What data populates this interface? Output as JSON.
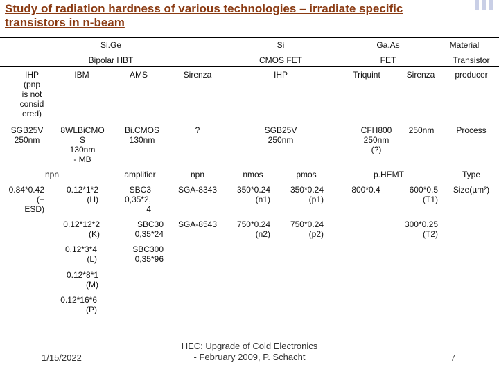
{
  "slide": {
    "title": "Study of radiation hardness of various technologies – irradiate specific transistors in n-beam",
    "footer": {
      "date": "1/15/2022",
      "center": "HEC: Upgrade of Cold Electronics\n- February 2009, P. Schacht",
      "page": "7"
    }
  },
  "table": {
    "material": {
      "sige": "Si.Ge",
      "si": "Si",
      "gaas": "Ga.As",
      "label": "Material"
    },
    "transistor": {
      "bipolar": "Bipolar HBT",
      "cmos": "CMOS FET",
      "fet": "FET",
      "label": "Transistor"
    },
    "producer": {
      "ihp": "IHP\n(pnp\nis not\nconsid\nered)",
      "ibm": "IBM",
      "ams": "AMS",
      "sirenza1": "Sirenza",
      "ihp2": "IHP",
      "triquint": "Triquint",
      "sirenza2": "Sirenza",
      "label": "producer"
    },
    "process": {
      "sgb25v": "SGB25V\n250nm",
      "bicmos8": "8WLBiCMO\nS\n130nm\n- MB",
      "bicmos": "Bi.CMOS\n130nm",
      "unknown": "?",
      "sgb25v2": "SGB25V\n250nm",
      "cfh800": "CFH800\n250nm\n(?)",
      "nm250": "250nm",
      "label": "Process"
    },
    "type": {
      "npn1": "npn",
      "amplifier": "amplifier",
      "npn2": "npn",
      "nmos": "nmos",
      "pmos": "pmos",
      "phemt": "p.HEMT",
      "label": "Type"
    },
    "size": {
      "r1": {
        "ihp": "0.84*0.42\n(+\nESD)",
        "ibm": "0.12*1*2\n(H)",
        "sbc": "SBC3\n0,35*2,\n4",
        "sga": "SGA-8343",
        "nmos": "350*0.24\n(n1)",
        "pmos": "350*0.24\n(p1)",
        "triquint": "800*0.4",
        "sirenza": "600*0.5\n(T1)",
        "label": "Size(µm²)"
      },
      "r2": {
        "ibm": "0.12*12*2\n(K)",
        "sbc": "SBC30\n0,35*24",
        "sga": "SGA-8543",
        "nmos": "750*0.24\n(n2)",
        "pmos": "750*0.24\n(p2)",
        "sirenza": "300*0.25\n(T2)"
      },
      "r3": {
        "ibm": "0.12*3*4\n(L)",
        "sbc": "SBC300\n0,35*96"
      },
      "r4": {
        "ibm": "0.12*8*1\n(M)"
      },
      "r5": {
        "ibm": "0.12*16*6\n(P)"
      }
    }
  }
}
